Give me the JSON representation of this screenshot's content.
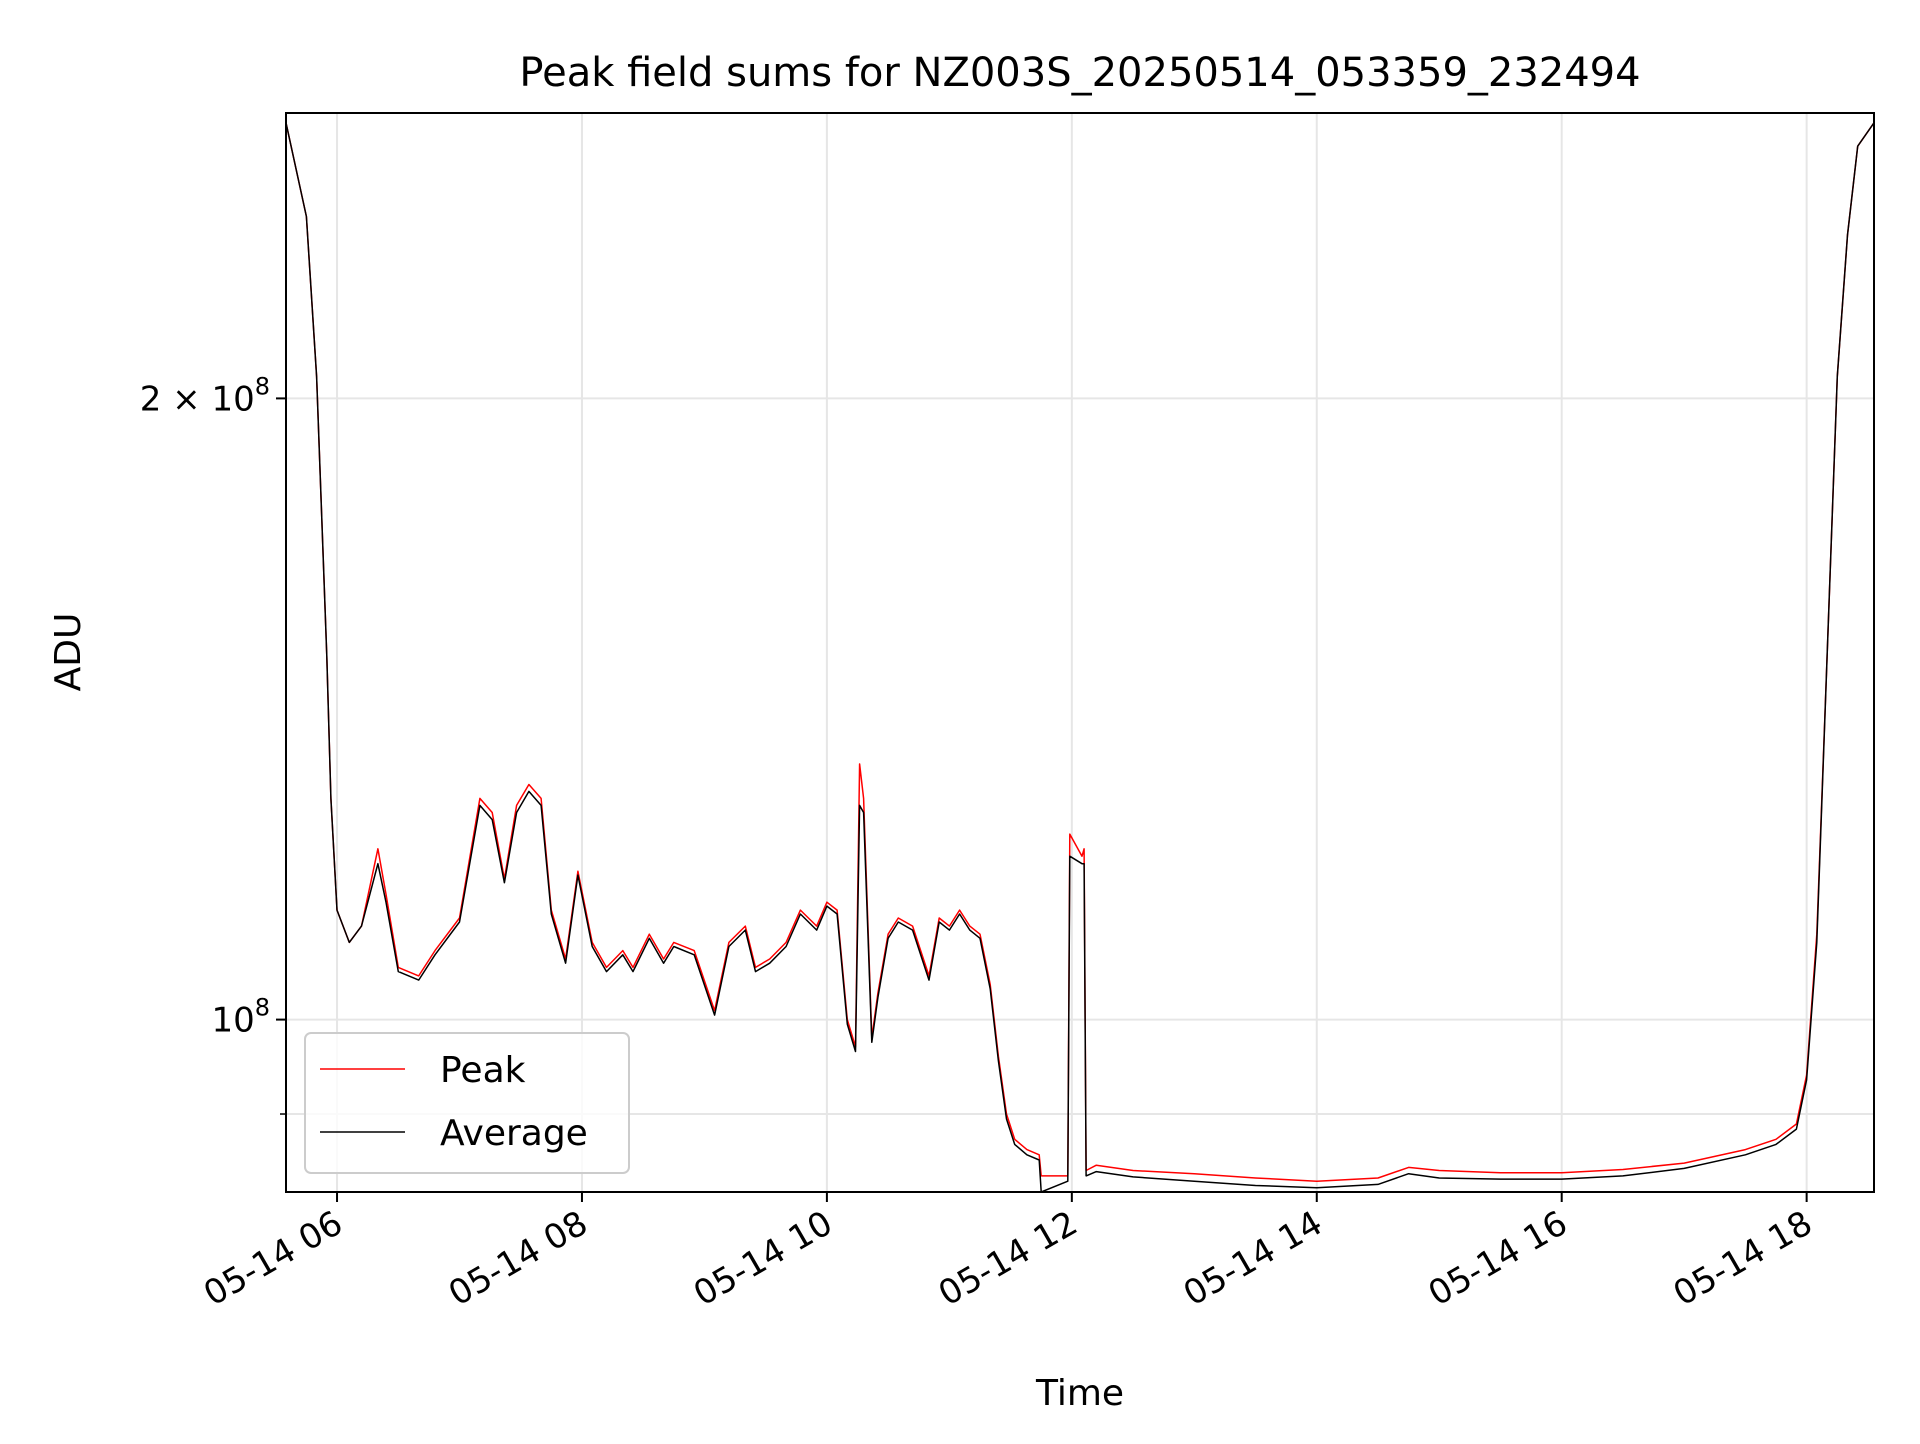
{
  "chart_data": {
    "type": "line",
    "title": "Peak field sums for NZ003S_20250514_053359_232494",
    "xlabel": "Time",
    "ylabel": "ADU",
    "y_scale": "log",
    "ylim": [
      82500000,
      275000000
    ],
    "xlim": [
      "2025-05-14 05:35",
      "2025-05-14 18:33"
    ],
    "x_ticks": [
      {
        "value": "2025-05-14 06:00",
        "label": "05-14 06"
      },
      {
        "value": "2025-05-14 08:00",
        "label": "05-14 08"
      },
      {
        "value": "2025-05-14 10:00",
        "label": "05-14 10"
      },
      {
        "value": "2025-05-14 12:00",
        "label": "05-14 12"
      },
      {
        "value": "2025-05-14 14:00",
        "label": "05-14 14"
      },
      {
        "value": "2025-05-14 16:00",
        "label": "05-14 16"
      },
      {
        "value": "2025-05-14 18:00",
        "label": "05-14 18"
      }
    ],
    "y_ticks": [
      {
        "value": 100000000,
        "base": "10",
        "exp": "8",
        "coef": ""
      },
      {
        "value": 200000000,
        "base": "10",
        "exp": "8",
        "coef": "2 × "
      }
    ],
    "y_minor_ticks": [
      90000000
    ],
    "grid": true,
    "legend_position": "lower-left",
    "series": [
      {
        "name": "Peak",
        "color": "#ff0000",
        "x": [
          "2025-05-14 05:35",
          "2025-05-14 05:45",
          "2025-05-14 05:50",
          "2025-05-14 05:55",
          "2025-05-14 05:57",
          "2025-05-14 06:00",
          "2025-05-14 06:06",
          "2025-05-14 06:12",
          "2025-05-14 06:20",
          "2025-05-14 06:24",
          "2025-05-14 06:30",
          "2025-05-14 06:40",
          "2025-05-14 06:48",
          "2025-05-14 07:00",
          "2025-05-14 07:10",
          "2025-05-14 07:16",
          "2025-05-14 07:22",
          "2025-05-14 07:28",
          "2025-05-14 07:34",
          "2025-05-14 07:40",
          "2025-05-14 07:45",
          "2025-05-14 07:52",
          "2025-05-14 07:58",
          "2025-05-14 08:05",
          "2025-05-14 08:12",
          "2025-05-14 08:20",
          "2025-05-14 08:25",
          "2025-05-14 08:33",
          "2025-05-14 08:40",
          "2025-05-14 08:45",
          "2025-05-14 08:55",
          "2025-05-14 09:05",
          "2025-05-14 09:12",
          "2025-05-14 09:20",
          "2025-05-14 09:25",
          "2025-05-14 09:32",
          "2025-05-14 09:40",
          "2025-05-14 09:47",
          "2025-05-14 09:55",
          "2025-05-14 10:00",
          "2025-05-14 10:05",
          "2025-05-14 10:10",
          "2025-05-14 10:14",
          "2025-05-14 10:16",
          "2025-05-14 10:18",
          "2025-05-14 10:22",
          "2025-05-14 10:25",
          "2025-05-14 10:30",
          "2025-05-14 10:35",
          "2025-05-14 10:42",
          "2025-05-14 10:50",
          "2025-05-14 10:55",
          "2025-05-14 11:00",
          "2025-05-14 11:05",
          "2025-05-14 11:10",
          "2025-05-14 11:15",
          "2025-05-14 11:20",
          "2025-05-14 11:24",
          "2025-05-14 11:28",
          "2025-05-14 11:32",
          "2025-05-14 11:38",
          "2025-05-14 11:44",
          "2025-05-14 11:45",
          "2025-05-14 11:58",
          "2025-05-14 11:59",
          "2025-05-14 12:05",
          "2025-05-14 12:06",
          "2025-05-14 12:07",
          "2025-05-14 12:12",
          "2025-05-14 12:30",
          "2025-05-14 13:00",
          "2025-05-14 13:30",
          "2025-05-14 14:00",
          "2025-05-14 14:30",
          "2025-05-14 14:45",
          "2025-05-14 15:00",
          "2025-05-14 15:30",
          "2025-05-14 16:00",
          "2025-05-14 16:30",
          "2025-05-14 17:00",
          "2025-05-14 17:30",
          "2025-05-14 17:45",
          "2025-05-14 17:55",
          "2025-05-14 18:00",
          "2025-05-14 18:05",
          "2025-05-14 18:10",
          "2025-05-14 18:15",
          "2025-05-14 18:20",
          "2025-05-14 18:25",
          "2025-05-14 18:33"
        ],
        "y": [
          272000000,
          245000000,
          205000000,
          150000000,
          128000000,
          113000000,
          109000000,
          111000000,
          121000000,
          115000000,
          106000000,
          105000000,
          108000000,
          112000000,
          128000000,
          126000000,
          117000000,
          127000000,
          130000000,
          128000000,
          113000000,
          107000000,
          118000000,
          109000000,
          106000000,
          108000000,
          106000000,
          110000000,
          107000000,
          109000000,
          108000000,
          101000000,
          109000000,
          111000000,
          106000000,
          107000000,
          109000000,
          113000000,
          111000000,
          114000000,
          113000000,
          100000000,
          97000000,
          133000000,
          128000000,
          98000000,
          103000000,
          110000000,
          112000000,
          111000000,
          105000000,
          112000000,
          111000000,
          113000000,
          111000000,
          110000000,
          104000000,
          96000000,
          90000000,
          87500000,
          86500000,
          86000000,
          84000000,
          84000000,
          123000000,
          120000000,
          121000000,
          84500000,
          85000000,
          84500000,
          84200000,
          83800000,
          83500000,
          83800000,
          84800000,
          84500000,
          84300000,
          84300000,
          84600000,
          85200000,
          86500000,
          87500000,
          89000000,
          94000000,
          110000000,
          150000000,
          205000000,
          240000000,
          265000000,
          272000000
        ]
      },
      {
        "name": "Average",
        "color": "#000000",
        "x": [
          "2025-05-14 05:35",
          "2025-05-14 05:45",
          "2025-05-14 05:50",
          "2025-05-14 05:55",
          "2025-05-14 05:57",
          "2025-05-14 06:00",
          "2025-05-14 06:06",
          "2025-05-14 06:12",
          "2025-05-14 06:20",
          "2025-05-14 06:24",
          "2025-05-14 06:30",
          "2025-05-14 06:40",
          "2025-05-14 06:48",
          "2025-05-14 07:00",
          "2025-05-14 07:10",
          "2025-05-14 07:16",
          "2025-05-14 07:22",
          "2025-05-14 07:28",
          "2025-05-14 07:34",
          "2025-05-14 07:40",
          "2025-05-14 07:45",
          "2025-05-14 07:52",
          "2025-05-14 07:58",
          "2025-05-14 08:05",
          "2025-05-14 08:12",
          "2025-05-14 08:20",
          "2025-05-14 08:25",
          "2025-05-14 08:33",
          "2025-05-14 08:40",
          "2025-05-14 08:45",
          "2025-05-14 08:55",
          "2025-05-14 09:05",
          "2025-05-14 09:12",
          "2025-05-14 09:20",
          "2025-05-14 09:25",
          "2025-05-14 09:32",
          "2025-05-14 09:40",
          "2025-05-14 09:47",
          "2025-05-14 09:55",
          "2025-05-14 10:00",
          "2025-05-14 10:05",
          "2025-05-14 10:10",
          "2025-05-14 10:14",
          "2025-05-14 10:16",
          "2025-05-14 10:18",
          "2025-05-14 10:22",
          "2025-05-14 10:25",
          "2025-05-14 10:30",
          "2025-05-14 10:35",
          "2025-05-14 10:42",
          "2025-05-14 10:50",
          "2025-05-14 10:55",
          "2025-05-14 11:00",
          "2025-05-14 11:05",
          "2025-05-14 11:10",
          "2025-05-14 11:15",
          "2025-05-14 11:20",
          "2025-05-14 11:24",
          "2025-05-14 11:28",
          "2025-05-14 11:32",
          "2025-05-14 11:38",
          "2025-05-14 11:44",
          "2025-05-14 11:45",
          "2025-05-14 11:58",
          "2025-05-14 11:59",
          "2025-05-14 12:05",
          "2025-05-14 12:06",
          "2025-05-14 12:07",
          "2025-05-14 12:12",
          "2025-05-14 12:30",
          "2025-05-14 13:00",
          "2025-05-14 13:30",
          "2025-05-14 14:00",
          "2025-05-14 14:30",
          "2025-05-14 14:45",
          "2025-05-14 15:00",
          "2025-05-14 15:30",
          "2025-05-14 16:00",
          "2025-05-14 16:30",
          "2025-05-14 17:00",
          "2025-05-14 17:30",
          "2025-05-14 17:45",
          "2025-05-14 17:55",
          "2025-05-14 18:00",
          "2025-05-14 18:05",
          "2025-05-14 18:10",
          "2025-05-14 18:15",
          "2025-05-14 18:20",
          "2025-05-14 18:25",
          "2025-05-14 18:33"
        ],
        "y": [
          272000000,
          245000000,
          205000000,
          150000000,
          128000000,
          113000000,
          109000000,
          111000000,
          119000000,
          114000000,
          105500000,
          104500000,
          107500000,
          111500000,
          127000000,
          125000000,
          116500000,
          126000000,
          129000000,
          127000000,
          112500000,
          106500000,
          117500000,
          108500000,
          105500000,
          107500000,
          105500000,
          109500000,
          106500000,
          108500000,
          107500000,
          100500000,
          108500000,
          110500000,
          105500000,
          106500000,
          108500000,
          112500000,
          110500000,
          113500000,
          112500000,
          99500000,
          96500000,
          127000000,
          126000000,
          97500000,
          102500000,
          109500000,
          111500000,
          110500000,
          104500000,
          111500000,
          110500000,
          112500000,
          110500000,
          109500000,
          103500000,
          95500000,
          89500000,
          87000000,
          86000000,
          85500000,
          82500000,
          83500000,
          120000000,
          119000000,
          119000000,
          84000000,
          84400000,
          83900000,
          83500000,
          83100000,
          82900000,
          83200000,
          84200000,
          83800000,
          83700000,
          83700000,
          84000000,
          84700000,
          86000000,
          87000000,
          88500000,
          93500000,
          109000000,
          150000000,
          205000000,
          240000000,
          265000000,
          272000000
        ]
      }
    ]
  }
}
